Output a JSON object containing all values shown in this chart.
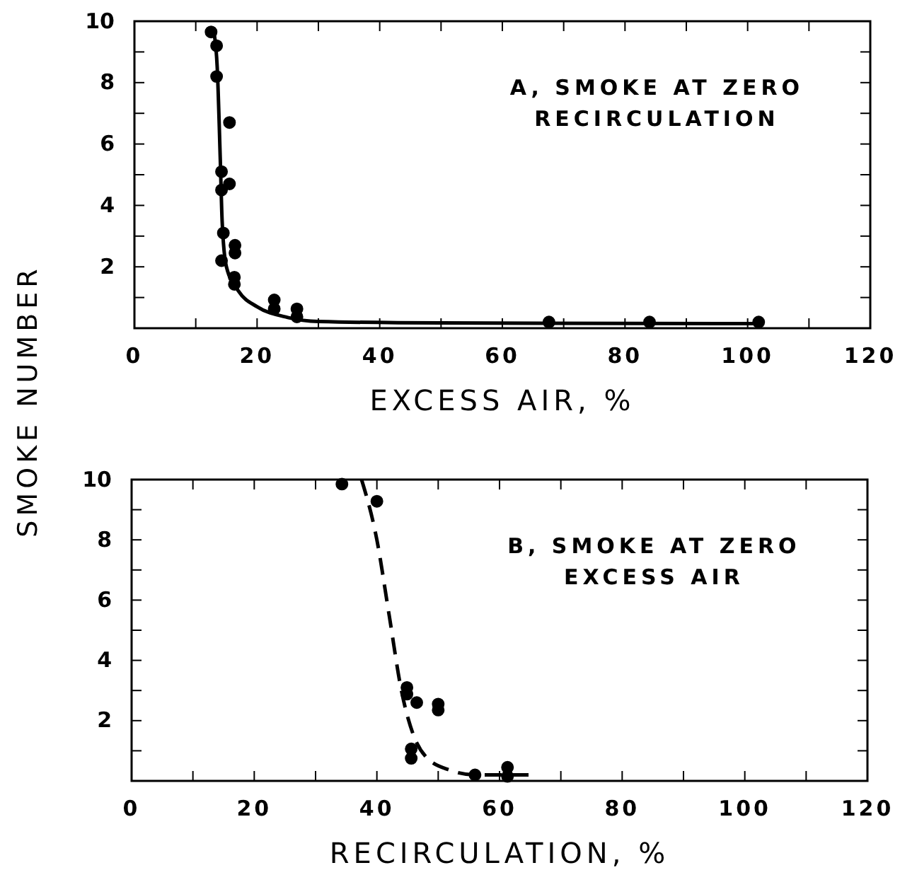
{
  "chart_data": [
    {
      "type": "scatter",
      "ylabel": "SMOKE NUMBER",
      "xlabel": "EXCESS AIR, %",
      "annotations": [
        "A, SMOKE AT ZERO\nRECIRCULATION"
      ],
      "xlim": [
        0,
        120
      ],
      "ylim": [
        0,
        10
      ],
      "xticks": [
        0,
        {
          "value": 10,
          "label": null
        },
        20,
        {
          "value": 30,
          "label": null
        },
        40,
        {
          "value": 50,
          "label": null
        },
        60,
        {
          "value": 70,
          "label": null
        },
        80,
        {
          "value": 90,
          "label": null
        },
        100,
        {
          "value": 110,
          "label": null
        },
        120
      ],
      "yticks": [
        {
          "value": 1,
          "label": null
        },
        2,
        {
          "value": 3,
          "label": null
        },
        4,
        {
          "value": 5,
          "label": null
        },
        6,
        {
          "value": 7,
          "label": null
        },
        8,
        {
          "value": 9,
          "label": null
        },
        10
      ],
      "grid": false,
      "series": [
        {
          "marker": "circle",
          "color": "#000000",
          "x": [
            12.5,
            13.4,
            13.4,
            15.5,
            14.2,
            14.2,
            15.5,
            14.5,
            14.2,
            16.4,
            16.4,
            16.3,
            16.3,
            22.8,
            22.8,
            26.5,
            26.5,
            67.6,
            84,
            101.8
          ],
          "values": [
            9.65,
            9.2,
            8.2,
            6.7,
            5.1,
            4.5,
            4.7,
            3.1,
            2.2,
            2.7,
            2.45,
            1.66,
            1.43,
            0.92,
            0.63,
            0.63,
            0.37,
            0.2,
            0.2,
            0.2
          ]
        },
        {
          "type": "line",
          "color": "#000000",
          "line_style": "solid",
          "x": [
            13.0,
            13.5,
            14.0,
            14.3,
            15.0,
            17.0,
            20.0,
            25.0,
            30.0,
            50.0,
            102.0
          ],
          "values": [
            9.6,
            8.5,
            5.5,
            3.5,
            2.0,
            1.2,
            0.7,
            0.35,
            0.22,
            0.17,
            0.15
          ]
        }
      ]
    },
    {
      "type": "scatter",
      "xlabel": "RECIRCULATION, %",
      "annotations": [
        "B, SMOKE AT ZERO\nEXCESS AIR"
      ],
      "xlim": [
        0,
        120
      ],
      "ylim": [
        0,
        10
      ],
      "xticks": [
        0,
        {
          "value": 10,
          "label": null
        },
        20,
        {
          "value": 30,
          "label": null
        },
        40,
        {
          "value": 50,
          "label": null
        },
        60,
        {
          "value": 70,
          "label": null
        },
        80,
        {
          "value": 90,
          "label": null
        },
        100,
        {
          "value": 110,
          "label": null
        },
        120
      ],
      "yticks": [
        {
          "value": 1,
          "label": null
        },
        2,
        {
          "value": 3,
          "label": null
        },
        4,
        {
          "value": 5,
          "label": null
        },
        6,
        {
          "value": 7,
          "label": null
        },
        8,
        {
          "value": 9,
          "label": null
        },
        10
      ],
      "grid": false,
      "series": [
        {
          "marker": "circle",
          "color": "#000000",
          "x": [
            34.3,
            40.0,
            44.9,
            44.9,
            46.5,
            50.0,
            50.0,
            45.6,
            45.6,
            56.0,
            61.3,
            61.3
          ],
          "values": [
            9.85,
            9.28,
            3.1,
            2.88,
            2.6,
            2.55,
            2.35,
            1.06,
            0.75,
            0.2,
            0.45,
            0.15
          ]
        },
        {
          "type": "line",
          "color": "#000000",
          "line_style": "dashed",
          "x": [
            37.5,
            40.0,
            42.0,
            44.0,
            46.0,
            48.0,
            52.0,
            56.0,
            66.0
          ],
          "values": [
            10.0,
            8.0,
            5.5,
            3.0,
            1.5,
            0.8,
            0.35,
            0.2,
            0.2
          ]
        }
      ]
    }
  ]
}
